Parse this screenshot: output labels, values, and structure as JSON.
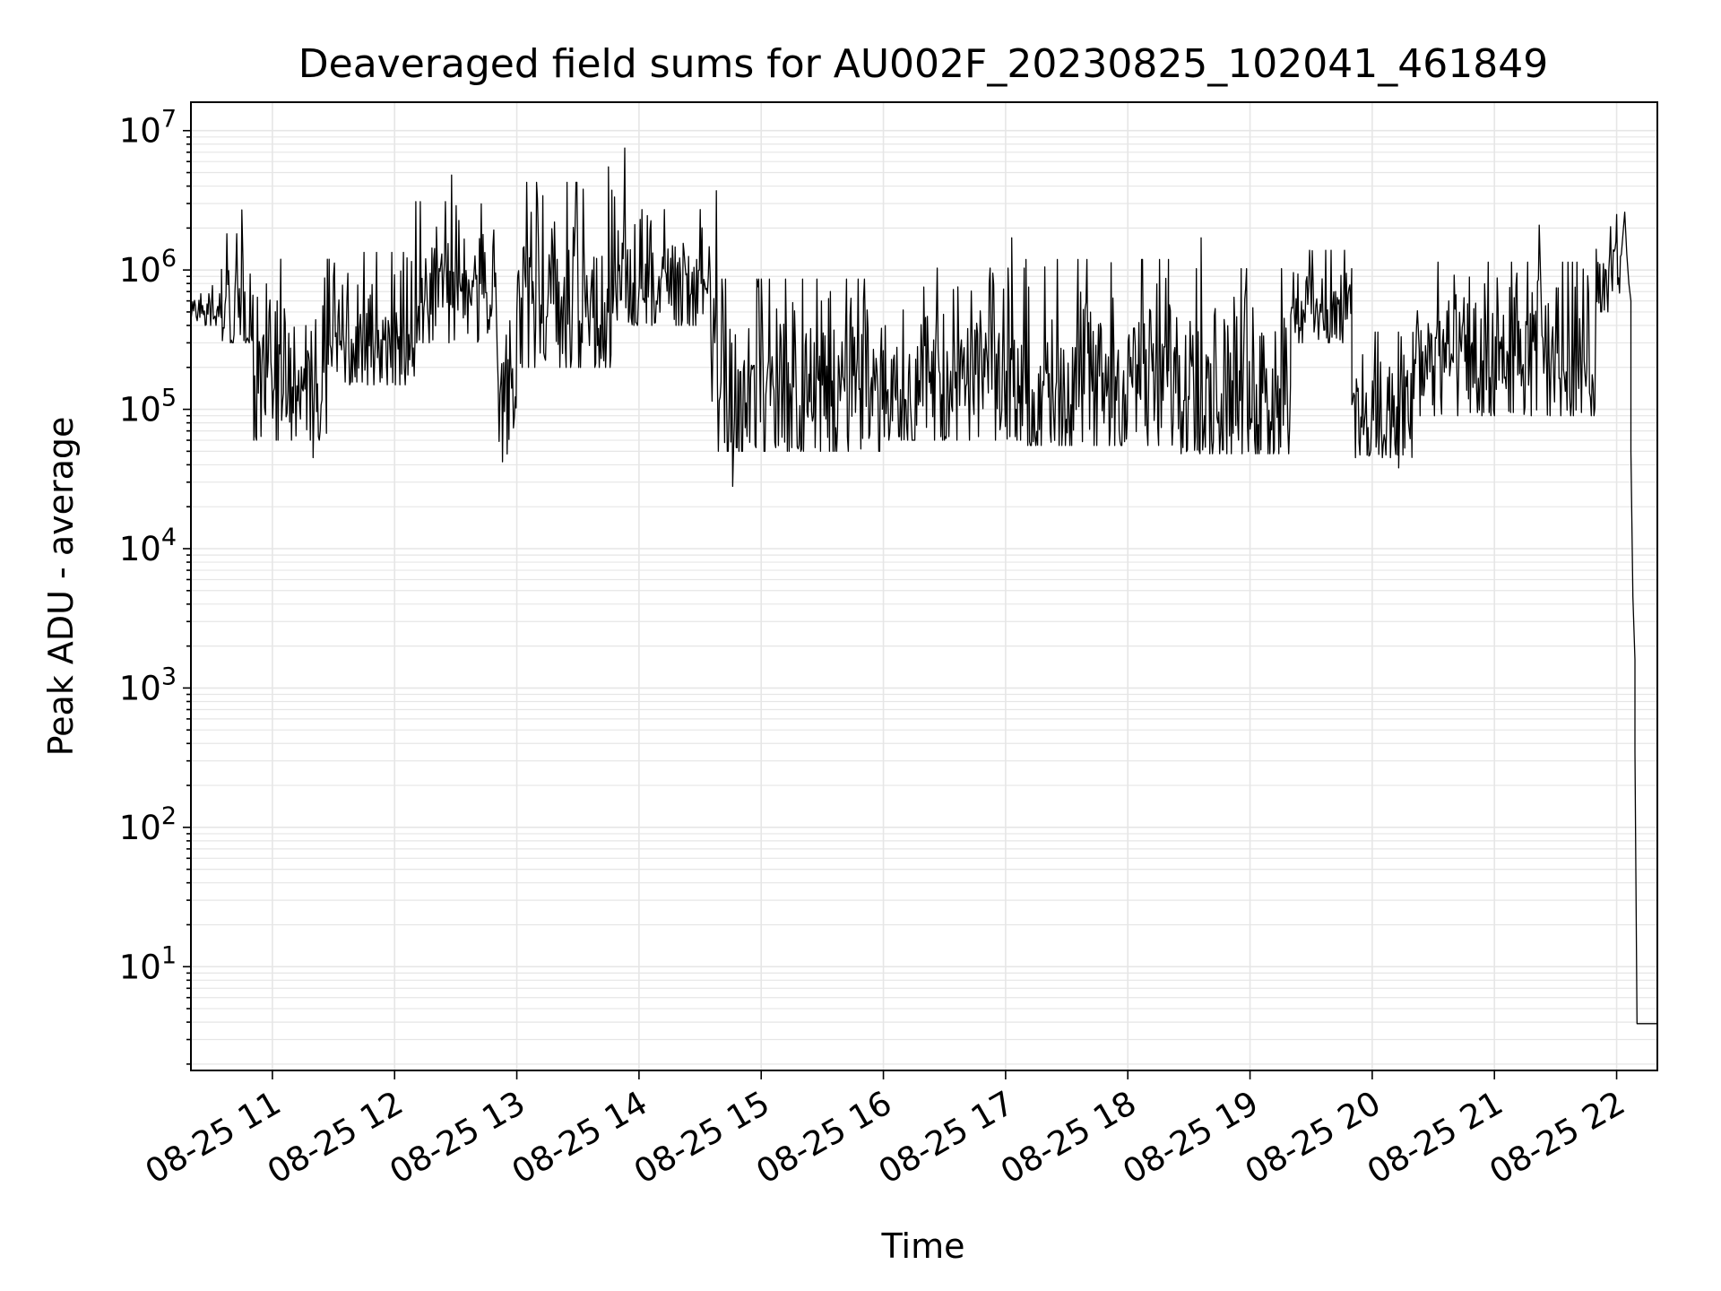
{
  "chart_data": {
    "type": "line",
    "title": "Deaveraged field sums for AU002F_20230825_102041_461849",
    "xlabel": "Time",
    "ylabel": "Peak ADU - average",
    "yscale": "log",
    "ylim": [
      1.8,
      16000000
    ],
    "xlim": [
      "2023-08-25 10:20",
      "2023-08-25 22:20"
    ],
    "grid": true,
    "grid_color": "#e6e6e6",
    "line_color": "#000000",
    "x_ticks": [
      {
        "value": "2023-08-25 11:00",
        "label": "08-25 11"
      },
      {
        "value": "2023-08-25 12:00",
        "label": "08-25 12"
      },
      {
        "value": "2023-08-25 13:00",
        "label": "08-25 13"
      },
      {
        "value": "2023-08-25 14:00",
        "label": "08-25 14"
      },
      {
        "value": "2023-08-25 15:00",
        "label": "08-25 15"
      },
      {
        "value": "2023-08-25 16:00",
        "label": "08-25 16"
      },
      {
        "value": "2023-08-25 17:00",
        "label": "08-25 17"
      },
      {
        "value": "2023-08-25 18:00",
        "label": "08-25 18"
      },
      {
        "value": "2023-08-25 19:00",
        "label": "08-25 19"
      },
      {
        "value": "2023-08-25 20:00",
        "label": "08-25 20"
      },
      {
        "value": "2023-08-25 21:00",
        "label": "08-25 21"
      },
      {
        "value": "2023-08-25 22:00",
        "label": "08-25 22"
      }
    ],
    "y_ticks": [
      {
        "value": 10,
        "base": "10",
        "exp": "1"
      },
      {
        "value": 100,
        "base": "10",
        "exp": "2"
      },
      {
        "value": 1000,
        "base": "10",
        "exp": "3"
      },
      {
        "value": 10000,
        "base": "10",
        "exp": "4"
      },
      {
        "value": 100000,
        "base": "10",
        "exp": "5"
      },
      {
        "value": 1000000,
        "base": "10",
        "exp": "6"
      },
      {
        "value": 10000000,
        "base": "10",
        "exp": "7"
      }
    ],
    "series": [
      {
        "segments": [
          {
            "start": "2023-08-25 10:20",
            "end": "2023-08-25 10:35",
            "low": 400000,
            "high": 800000
          },
          {
            "start": "2023-08-25 10:35",
            "end": "2023-08-25 10:50",
            "low": 300000,
            "high": 2000000
          },
          {
            "start": "2023-08-25 10:50",
            "end": "2023-08-25 11:30",
            "low": 60000,
            "high": 1400000
          },
          {
            "start": "2023-08-25 11:30",
            "end": "2023-08-25 12:10",
            "low": 150000,
            "high": 1500000
          },
          {
            "start": "2023-08-25 12:10",
            "end": "2023-08-25 12:50",
            "low": 300000,
            "high": 3500000
          },
          {
            "start": "2023-08-25 12:50",
            "end": "2023-08-25 13:00",
            "low": 45000,
            "high": 900000
          },
          {
            "start": "2023-08-25 13:00",
            "end": "2023-08-25 13:50",
            "low": 200000,
            "high": 5000000
          },
          {
            "start": "2023-08-25 13:50",
            "end": "2023-08-25 14:35",
            "low": 400000,
            "high": 3000000
          },
          {
            "start": "2023-08-25 14:35",
            "end": "2023-08-25 16:00",
            "low": 50000,
            "high": 1000000
          },
          {
            "start": "2023-08-25 16:00",
            "end": "2023-08-25 17:10",
            "low": 60000,
            "high": 1200000
          },
          {
            "start": "2023-08-25 17:10",
            "end": "2023-08-25 18:20",
            "low": 55000,
            "high": 1400000
          },
          {
            "start": "2023-08-25 18:20",
            "end": "2023-08-25 19:20",
            "low": 48000,
            "high": 1200000
          },
          {
            "start": "2023-08-25 19:20",
            "end": "2023-08-25 19:50",
            "low": 300000,
            "high": 1500000
          },
          {
            "start": "2023-08-25 19:50",
            "end": "2023-08-25 20:20",
            "low": 45000,
            "high": 400000
          },
          {
            "start": "2023-08-25 20:20",
            "end": "2023-08-25 21:50",
            "low": 90000,
            "high": 1300000
          },
          {
            "start": "2023-08-25 21:50",
            "end": "2023-08-25 22:03",
            "low": 500000,
            "high": 2200000
          }
        ],
        "spikes": [
          {
            "x": "2023-08-25 10:45",
            "y": 2700000
          },
          {
            "x": "2023-08-25 11:20",
            "y": 45000
          },
          {
            "x": "2023-08-25 12:28",
            "y": 4800000
          },
          {
            "x": "2023-08-25 12:53",
            "y": 42000
          },
          {
            "x": "2023-08-25 13:45",
            "y": 5500000
          },
          {
            "x": "2023-08-25 13:53",
            "y": 7500000
          },
          {
            "x": "2023-08-25 14:38",
            "y": 3700000
          },
          {
            "x": "2023-08-25 14:46",
            "y": 28000
          },
          {
            "x": "2023-08-25 17:03",
            "y": 1700000
          },
          {
            "x": "2023-08-25 18:36",
            "y": 1700000
          },
          {
            "x": "2023-08-25 20:13",
            "y": 38000
          },
          {
            "x": "2023-08-25 21:22",
            "y": 2100000
          },
          {
            "x": "2023-08-25 22:00",
            "y": 2500000
          },
          {
            "x": "2023-08-25 22:04",
            "y": 2600000
          }
        ],
        "tail": [
          {
            "x": "2023-08-25 22:05",
            "y": 1300000
          },
          {
            "x": "2023-08-25 22:06",
            "y": 800000
          },
          {
            "x": "2023-08-25 22:07",
            "y": 600000
          },
          {
            "x": "2023-08-25 22:07",
            "y": 50000
          },
          {
            "x": "2023-08-25 22:08",
            "y": 4500
          },
          {
            "x": "2023-08-25 22:09",
            "y": 1600
          },
          {
            "x": "2023-08-25 22:09",
            "y": 350
          },
          {
            "x": "2023-08-25 22:10",
            "y": 3.9
          },
          {
            "x": "2023-08-25 22:20",
            "y": 3.9
          }
        ]
      }
    ]
  }
}
